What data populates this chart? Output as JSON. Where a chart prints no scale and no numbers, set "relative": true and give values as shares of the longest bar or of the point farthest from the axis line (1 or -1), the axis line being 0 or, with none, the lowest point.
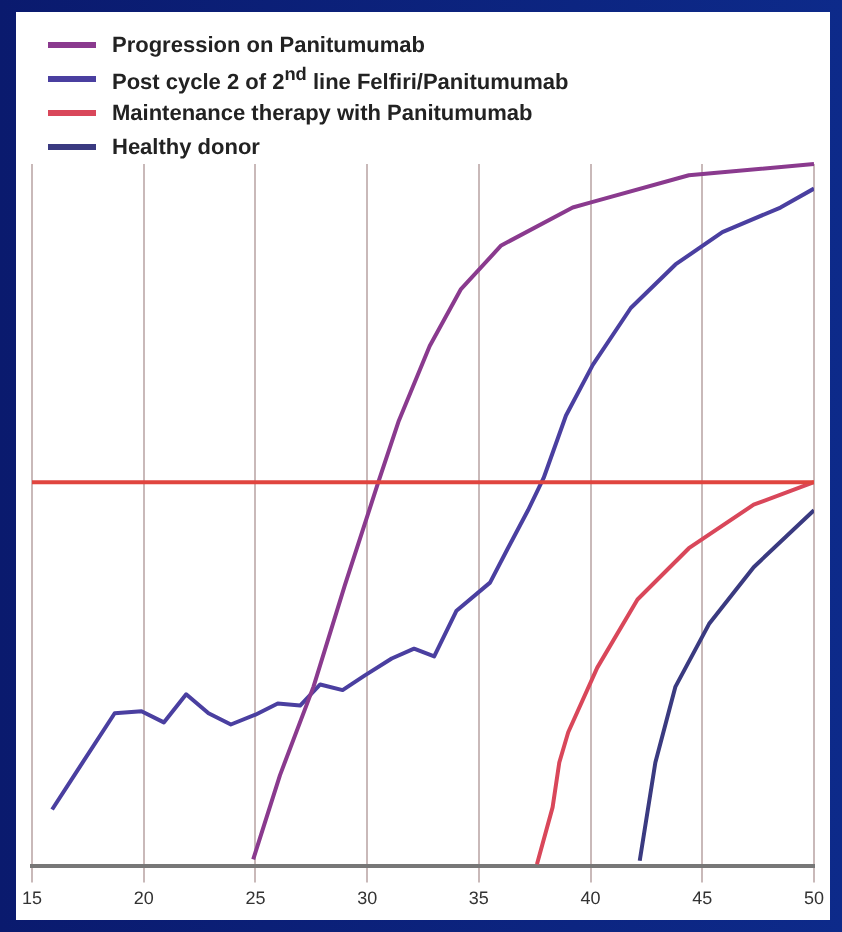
{
  "chart_data": {
    "type": "line",
    "relative": true,
    "xlim": [
      15,
      50
    ],
    "xticks": [
      15,
      20,
      25,
      30,
      35,
      40,
      45,
      50
    ],
    "grid": true,
    "legend": "top left",
    "marker": "none",
    "line_style": "solid",
    "ref_lines": [
      {
        "axis": "y",
        "value": 0.547,
        "color": "#e0453f"
      }
    ],
    "series": [
      {
        "name": "Progression on Panitumumab",
        "color": "#8a3a8e",
        "x": [
          24.9,
          26.1,
          27.6,
          29.0,
          30.5,
          31.4,
          32.8,
          34.2,
          36.0,
          39.2,
          40.1,
          44.4,
          50
        ],
        "values": [
          0.01,
          0.13,
          0.256,
          0.4,
          0.547,
          0.633,
          0.741,
          0.822,
          0.884,
          0.938,
          0.946,
          0.984,
          1.0
        ]
      },
      {
        "name": "Post cycle 2 of 2$^{nd}$ line Felfiri/Panitumumab",
        "color": "#4a3fa0",
        "x": [
          15.9,
          17.0,
          18.7,
          19.9,
          20.9,
          21.9,
          22.9,
          23.9,
          25.0,
          26.0,
          27.0,
          27.9,
          28.9,
          29.9,
          31.1,
          32.1,
          33.0,
          34.0,
          35.5,
          36.3,
          37.2,
          37.9,
          38.9,
          40.1,
          41.8,
          43.8,
          45.9,
          48.5,
          50
        ],
        "values": [
          0.081,
          0.135,
          0.218,
          0.221,
          0.205,
          0.245,
          0.218,
          0.202,
          0.216,
          0.232,
          0.229,
          0.259,
          0.251,
          0.272,
          0.296,
          0.31,
          0.299,
          0.364,
          0.404,
          0.453,
          0.507,
          0.553,
          0.642,
          0.714,
          0.795,
          0.857,
          0.903,
          0.938,
          0.965
        ]
      },
      {
        "name": "Maintenance therapy with Panitumumab",
        "color": "#d9475a",
        "x": [
          37.6,
          38.3,
          38.6,
          39.0,
          40.3,
          42.1,
          44.4,
          47.3,
          50
        ],
        "values": [
          0.003,
          0.084,
          0.148,
          0.191,
          0.283,
          0.38,
          0.453,
          0.515,
          0.547
        ]
      },
      {
        "name": "Healthy donor",
        "color": "#3a3a80",
        "x": [
          42.2,
          42.9,
          43.8,
          45.3,
          47.3,
          50
        ],
        "values": [
          0.008,
          0.148,
          0.256,
          0.345,
          0.426,
          0.507
        ]
      }
    ]
  }
}
